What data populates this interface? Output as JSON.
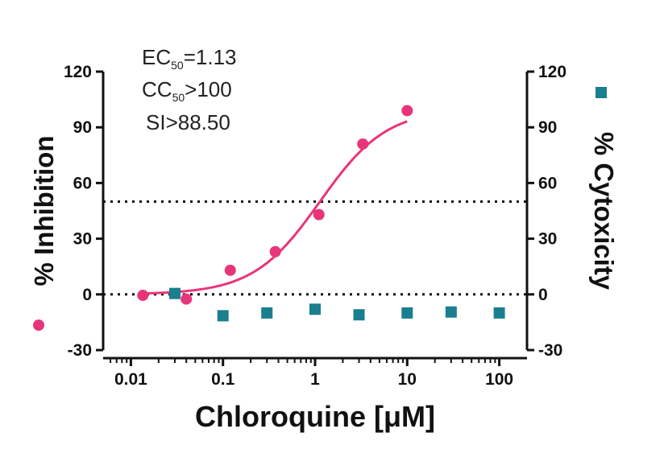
{
  "chart_data": {
    "type": "scatter",
    "xlabel": "Chloroquine [μM]",
    "xscale": "log",
    "xlim": [
      0.005,
      200
    ],
    "x_ticks": [
      "0.01",
      "0.1",
      "1",
      "10",
      "100"
    ],
    "ylabel_left": "% Inhibition",
    "ylabel_right": "% Cytoxicity",
    "ylim": [
      -30,
      120
    ],
    "y_ticks": [
      "120",
      "90",
      "60",
      "30",
      "0",
      "-30"
    ],
    "reference_lines": [
      50,
      0
    ],
    "annotations": {
      "ec_prefix": "EC",
      "ec_sub": "50",
      "ec_value": "=1.13",
      "cc_prefix": "CC",
      "cc_sub": "50",
      "cc_value": ">100",
      "si": "SI>88.50"
    },
    "series": [
      {
        "axis": "left",
        "marker": "circle",
        "color": "#e8357a",
        "x": [
          0.0135,
          0.04,
          0.12,
          0.37,
          1.1,
          3.3,
          10
        ],
        "y": [
          -0.5,
          -2.5,
          13,
          23,
          43,
          81,
          99
        ]
      },
      {
        "axis": "left",
        "marker": "fit-curve",
        "color": "#e8357a",
        "ec50": 1.13,
        "hill": 1.2,
        "bottom": 0,
        "top": 100,
        "x_range": [
          0.0135,
          10
        ]
      },
      {
        "axis": "right",
        "marker": "square",
        "color": "#1a7f8e",
        "x": [
          0.03,
          0.1,
          0.3,
          1,
          3,
          10,
          30,
          100
        ],
        "y": [
          0.5,
          -11.5,
          -10,
          -8,
          -11,
          -10,
          -9.5,
          -10
        ]
      }
    ]
  }
}
